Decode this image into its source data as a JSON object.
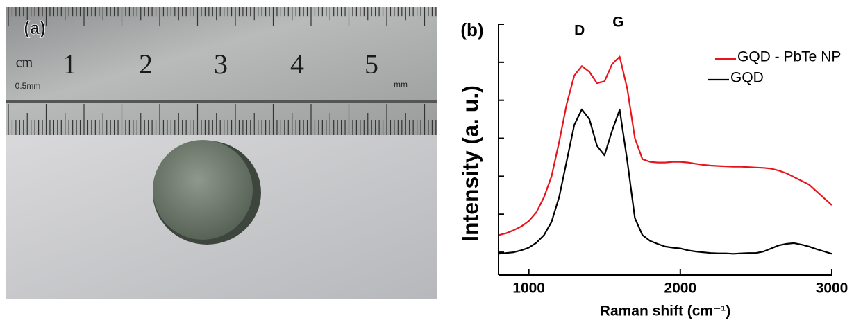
{
  "panel_a": {
    "label": "(a)",
    "unit_label": "cm",
    "sub_unit_label": "0.5mm",
    "mm_label": "mm",
    "ruler_numbers": [
      "1",
      "2",
      "3",
      "4",
      "5"
    ]
  },
  "chart_data": {
    "type": "line",
    "panel_label": "(b)",
    "x_label": "Raman shift (cm⁻¹)",
    "y_label": "Intensity (a. u.)",
    "annotations": [
      "D",
      "G"
    ],
    "xlim": [
      800,
      3000
    ],
    "xticks": [
      1000,
      2000,
      3000
    ],
    "ylim": [
      0.4,
      7
    ],
    "yticks": [
      1,
      2,
      3,
      4,
      5,
      6,
      7
    ],
    "x": [
      800,
      850,
      900,
      950,
      1000,
      1050,
      1100,
      1150,
      1200,
      1250,
      1300,
      1350,
      1400,
      1450,
      1500,
      1550,
      1600,
      1650,
      1700,
      1750,
      1800,
      1850,
      1900,
      1950,
      2000,
      2050,
      2100,
      2150,
      2200,
      2250,
      2300,
      2350,
      2400,
      2450,
      2500,
      2550,
      2600,
      2650,
      2700,
      2750,
      2800,
      2850,
      2900,
      2950,
      3000
    ],
    "legend": "upper right",
    "series": [
      {
        "name": "GQD - PbTe NP",
        "color": "#e8141b",
        "values": [
          1.45,
          1.5,
          1.58,
          1.68,
          1.82,
          2.05,
          2.45,
          3.0,
          3.9,
          4.9,
          5.65,
          5.9,
          5.75,
          5.45,
          5.5,
          5.95,
          6.15,
          5.3,
          4.0,
          3.45,
          3.38,
          3.36,
          3.36,
          3.38,
          3.38,
          3.36,
          3.33,
          3.3,
          3.28,
          3.27,
          3.26,
          3.25,
          3.25,
          3.24,
          3.23,
          3.22,
          3.2,
          3.15,
          3.08,
          2.98,
          2.88,
          2.78,
          2.6,
          2.42,
          2.24
        ]
      },
      {
        "name": "GQD",
        "color": "#000000",
        "values": [
          0.96,
          0.98,
          1.0,
          1.05,
          1.12,
          1.25,
          1.45,
          1.8,
          2.45,
          3.4,
          4.35,
          4.76,
          4.5,
          3.8,
          3.55,
          4.2,
          4.75,
          3.4,
          1.9,
          1.45,
          1.3,
          1.22,
          1.15,
          1.12,
          1.1,
          1.05,
          1.02,
          1.0,
          0.98,
          0.97,
          0.97,
          0.96,
          0.97,
          0.98,
          0.98,
          1.02,
          1.1,
          1.18,
          1.22,
          1.24,
          1.2,
          1.15,
          1.08,
          1.02,
          0.96
        ]
      }
    ]
  }
}
